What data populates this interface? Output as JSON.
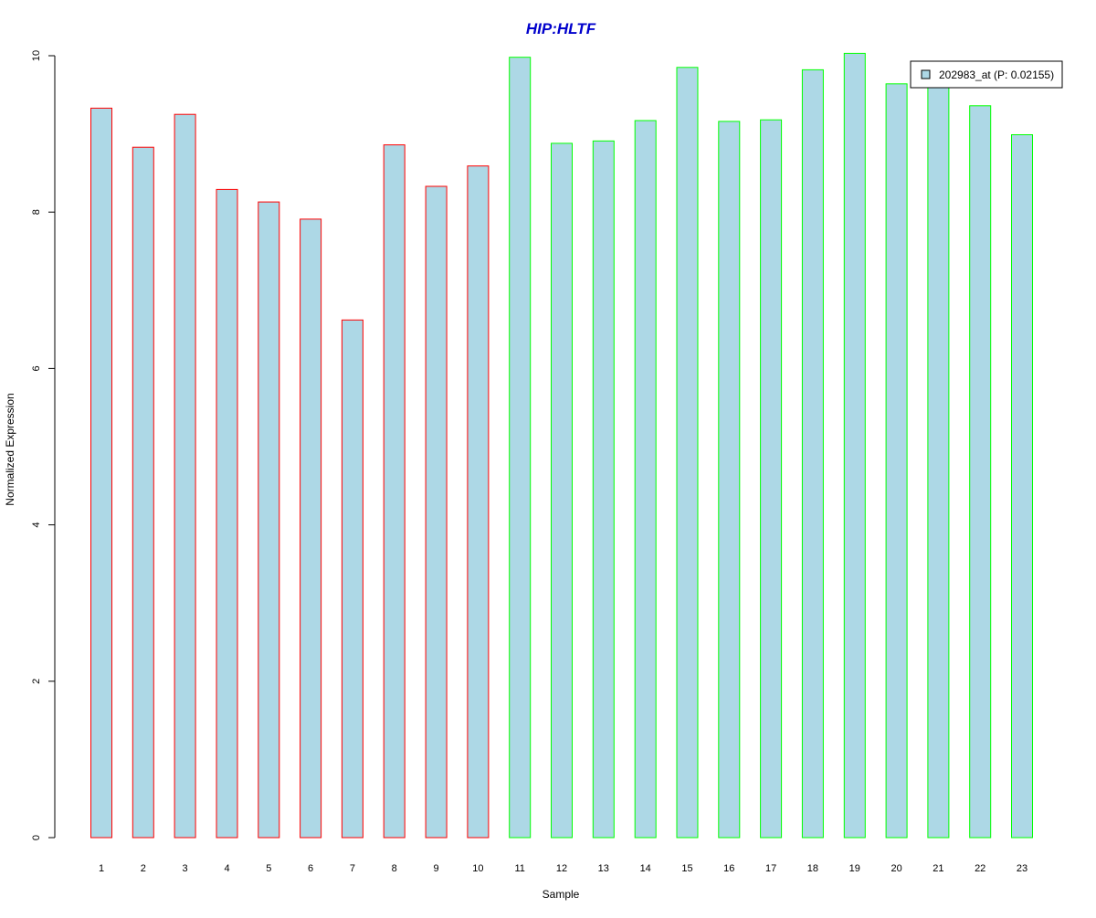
{
  "chart_data": {
    "type": "bar",
    "title": "HIP:HLTF",
    "xlabel": "Sample",
    "ylabel": "Normalized Expression",
    "ylim": [
      0,
      10
    ],
    "yticks": [
      "0",
      "2",
      "4",
      "6",
      "8",
      "10"
    ],
    "categories": [
      "1",
      "2",
      "3",
      "4",
      "5",
      "6",
      "7",
      "8",
      "9",
      "10",
      "11",
      "12",
      "13",
      "14",
      "15",
      "16",
      "17",
      "18",
      "19",
      "20",
      "21",
      "22",
      "23"
    ],
    "values": [
      9.33,
      8.83,
      9.25,
      8.29,
      8.13,
      7.91,
      6.62,
      8.86,
      8.33,
      8.59,
      9.98,
      8.88,
      8.91,
      9.17,
      9.85,
      9.16,
      9.18,
      9.82,
      10.03,
      9.64,
      9.61,
      9.36,
      8.99
    ],
    "groups": [
      "red",
      "red",
      "red",
      "red",
      "red",
      "red",
      "red",
      "red",
      "red",
      "red",
      "green",
      "green",
      "green",
      "green",
      "green",
      "green",
      "green",
      "green",
      "green",
      "green",
      "green",
      "green",
      "green"
    ],
    "series": [
      {
        "name": "202983_at (P: 0.02155)",
        "values": [
          9.33,
          8.83,
          9.25,
          8.29,
          8.13,
          7.91,
          6.62,
          8.86,
          8.33,
          8.59,
          9.98,
          8.88,
          8.91,
          9.17,
          9.85,
          9.16,
          9.18,
          9.82,
          10.03,
          9.64,
          9.61,
          9.36,
          8.99
        ]
      }
    ],
    "legend": {
      "label": "202983_at (P: 0.02155)",
      "position": "top-right"
    },
    "grid": false,
    "colors": {
      "fill": "#add8e6",
      "border_red": "#ff0000",
      "border_green": "#00ff00",
      "title": "#0000cc",
      "axis": "#000000"
    }
  }
}
